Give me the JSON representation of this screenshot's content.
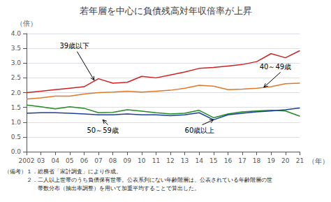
{
  "chart_data": {
    "type": "line",
    "title": "若年層を中心に負債残高対年収倍率が上昇",
    "xlabel": "（年）",
    "ylabel": "（倍）",
    "x": [
      2002,
      2003,
      2004,
      2005,
      2006,
      2007,
      2008,
      2009,
      2010,
      2011,
      2012,
      2013,
      2014,
      2015,
      2016,
      2017,
      2018,
      2019,
      2020,
      2021
    ],
    "xlim": [
      2002,
      2021
    ],
    "xticks": [
      2002,
      {
        "value": 2003,
        "label": "03"
      },
      {
        "value": 2004,
        "label": "04"
      },
      {
        "value": 2005,
        "label": "05"
      },
      {
        "value": 2006,
        "label": "06"
      },
      {
        "value": 2007,
        "label": "07"
      },
      {
        "value": 2008,
        "label": "08"
      },
      {
        "value": 2009,
        "label": "09"
      },
      {
        "value": 2010,
        "label": "10"
      },
      {
        "value": 2011,
        "label": "11"
      },
      {
        "value": 2012,
        "label": "12"
      },
      {
        "value": 2013,
        "label": "13"
      },
      {
        "value": 2014,
        "label": "14"
      },
      {
        "value": 2015,
        "label": "15"
      },
      {
        "value": 2016,
        "label": "16"
      },
      {
        "value": 2017,
        "label": "17"
      },
      {
        "value": 2018,
        "label": "18"
      },
      {
        "value": 2019,
        "label": "19"
      },
      {
        "value": 2020,
        "label": "20"
      },
      {
        "value": 2021,
        "label": "21"
      }
    ],
    "ylim": [
      0.0,
      4.0
    ],
    "yticks": [
      {
        "value": 0.0,
        "label": "0.0"
      },
      0.5,
      {
        "value": 1.0,
        "label": "1.0"
      },
      1.5,
      {
        "value": 2.0,
        "label": "2.0"
      },
      2.5,
      {
        "value": 3.0,
        "label": "3.0"
      },
      3.5,
      {
        "value": 4.0,
        "label": "4.0"
      }
    ],
    "grid": true,
    "series": [
      {
        "name": "39歳以下",
        "color": "#cc2222",
        "values": [
          2.0,
          2.05,
          2.1,
          2.15,
          2.2,
          2.47,
          2.32,
          2.35,
          2.55,
          2.5,
          2.6,
          2.7,
          2.82,
          2.85,
          2.9,
          2.95,
          3.05,
          3.32,
          3.18,
          3.42
        ]
      },
      {
        "name": "40～49歳",
        "color": "#e07828",
        "values": [
          1.78,
          1.82,
          1.88,
          1.88,
          1.95,
          2.0,
          2.02,
          2.05,
          2.02,
          2.05,
          2.08,
          2.15,
          2.25,
          2.22,
          2.1,
          2.12,
          2.15,
          2.2,
          2.3,
          2.32
        ]
      },
      {
        "name": "50～59歳",
        "color": "#228b22",
        "values": [
          1.58,
          1.52,
          1.45,
          1.52,
          1.47,
          1.32,
          1.33,
          1.42,
          1.37,
          1.32,
          1.28,
          1.3,
          1.4,
          1.15,
          1.28,
          1.35,
          1.38,
          1.4,
          1.38,
          1.2
        ]
      },
      {
        "name": "60歳以上",
        "color": "#1a3fa0",
        "values": [
          1.3,
          1.32,
          1.32,
          1.3,
          1.28,
          1.25,
          1.25,
          1.28,
          1.25,
          1.25,
          1.22,
          1.25,
          1.32,
          1.08,
          1.25,
          1.3,
          1.35,
          1.38,
          1.42,
          1.48
        ]
      }
    ],
    "annotations": [
      {
        "text": "39歳以下",
        "x": 2006.7,
        "y": 2.42,
        "text_x": 2004.3,
        "text_y": 3.58
      },
      {
        "text": "40～49歳",
        "x": 2018.5,
        "y": 2.18,
        "text_x": 2018.2,
        "text_y": 2.88
      },
      {
        "text": "50～59歳",
        "x": 2007.3,
        "y": 1.08,
        "text_x": 2006.2,
        "text_y": 0.72
      },
      {
        "text": "60歳以上",
        "x": 2015.0,
        "y": 1.08,
        "text_x": 2013.0,
        "text_y": 0.72
      }
    ],
    "notes": [
      "（備考）１．総務省「家計調査」により作成。",
      "　　　　２．二人以上世帯のうち負債保有世帯。公表系列にない年齢階層は、公表されている年齢階層の世",
      "　　　　　　帯数分布（抽出率調整）を用いて加重平均することで算出した。"
    ]
  }
}
